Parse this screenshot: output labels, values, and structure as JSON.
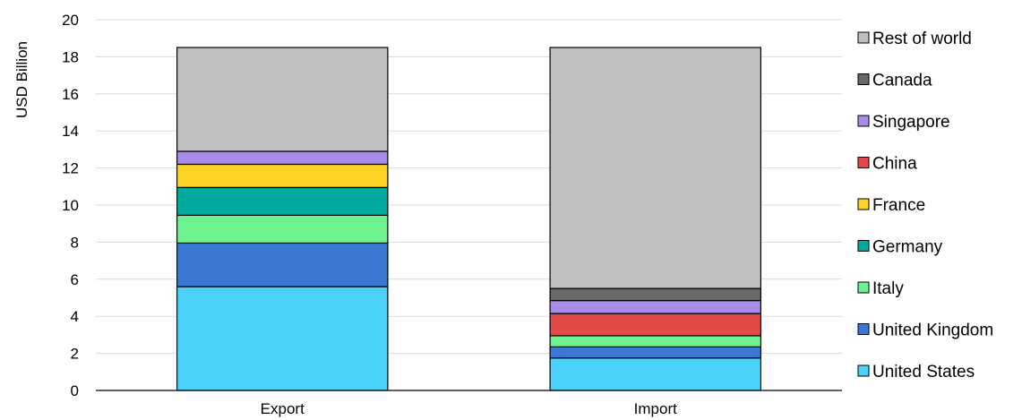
{
  "chart_data": {
    "type": "bar",
    "stacked": true,
    "title": "",
    "xlabel": "",
    "ylabel": "USD Billion",
    "ylim": [
      0,
      20
    ],
    "yticks": [
      0,
      2,
      4,
      6,
      8,
      10,
      12,
      14,
      16,
      18,
      20
    ],
    "grid": true,
    "legend_position": "right",
    "categories": [
      "Export",
      "Import"
    ],
    "series": [
      {
        "name": "United States",
        "color": "#4ad2fb",
        "values": [
          5.6,
          1.75
        ]
      },
      {
        "name": "United Kingdom",
        "color": "#3b78d6",
        "values": [
          2.35,
          0.6
        ]
      },
      {
        "name": "Italy",
        "color": "#6ef28f",
        "values": [
          1.5,
          0.6
        ]
      },
      {
        "name": "Germany",
        "color": "#00ab9e",
        "values": [
          1.5,
          0.0
        ]
      },
      {
        "name": "France",
        "color": "#fdd426",
        "values": [
          1.25,
          0.0
        ]
      },
      {
        "name": "China",
        "color": "#e24848",
        "values": [
          0.0,
          1.2
        ]
      },
      {
        "name": "Singapore",
        "color": "#a98bea",
        "values": [
          0.7,
          0.7
        ]
      },
      {
        "name": "Canada",
        "color": "#686868",
        "values": [
          0.0,
          0.65
        ]
      },
      {
        "name": "Rest of world",
        "color": "#bfbfbf",
        "values": [
          5.6,
          13.0
        ]
      }
    ]
  }
}
